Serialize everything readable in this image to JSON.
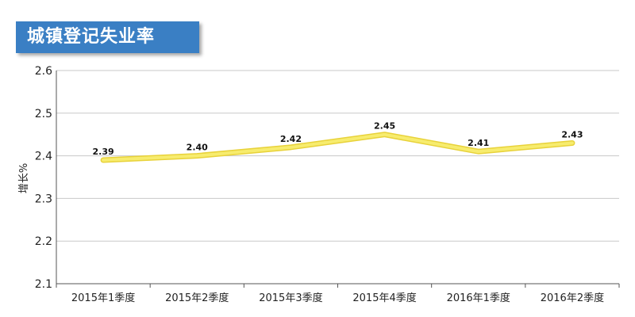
{
  "title": "城镇登记失业率",
  "chart_data": {
    "type": "line",
    "categories": [
      "2015年1季度",
      "2015年2季度",
      "2015年3季度",
      "2015年4季度",
      "2016年1季度",
      "2016年2季度"
    ],
    "series": [
      {
        "values": [
          2.39,
          2.4,
          2.42,
          2.45,
          2.41,
          2.43
        ]
      }
    ],
    "data_labels": [
      "2.39",
      "2.40",
      "2.42",
      "2.45",
      "2.41",
      "2.43"
    ],
    "ylabel": "增长%",
    "ylim": [
      2.1,
      2.6
    ],
    "yticks": [
      2.1,
      2.2,
      2.3,
      2.4,
      2.5,
      2.6
    ],
    "ytick_labels": [
      "2.1",
      "2.2",
      "2.3",
      "2.4",
      "2.5",
      "2.6"
    ],
    "grid": true,
    "line_color": "#f7ec6e",
    "line_outline_color": "#e8d23a"
  }
}
